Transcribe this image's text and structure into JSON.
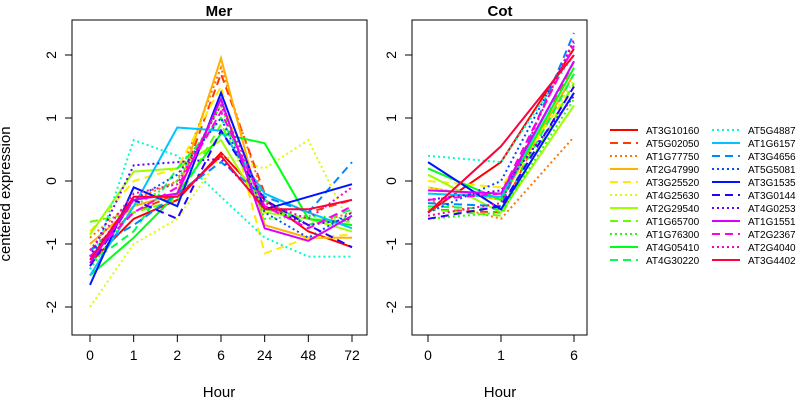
{
  "chart_data": [
    {
      "type": "line",
      "title": "Mer",
      "xlabel": "Hour",
      "ylabel": "centered expression",
      "categories": [
        "0",
        "1",
        "2",
        "6",
        "24",
        "48",
        "72"
      ],
      "ylim": [
        -2,
        2
      ],
      "yticks": [
        "-2",
        "-1",
        "0",
        "1",
        "2"
      ],
      "series": [
        {
          "name": "AT3G10160",
          "color": "#FF0000",
          "dash": "solid",
          "values": [
            -1.3,
            -0.6,
            -0.3,
            0.45,
            -0.3,
            -0.8,
            -1.05
          ]
        },
        {
          "name": "AT5G02050",
          "color": "#FF3B00",
          "dash": "dashed",
          "values": [
            -1.1,
            -0.5,
            -0.2,
            1.7,
            -0.2,
            -0.5,
            -0.3
          ]
        },
        {
          "name": "AT1G77750",
          "color": "#FF7600",
          "dash": "dotted",
          "values": [
            -0.9,
            -0.3,
            0.0,
            1.8,
            -0.3,
            -0.7,
            -0.5
          ]
        },
        {
          "name": "AT2G47990",
          "color": "#FFB100",
          "dash": "solid",
          "values": [
            -1.0,
            -0.4,
            -0.2,
            1.95,
            -0.7,
            -0.9,
            -0.9
          ]
        },
        {
          "name": "AT3G25520",
          "color": "#FFEB00",
          "dash": "dashed",
          "values": [
            -0.8,
            0.0,
            0.2,
            1.5,
            -1.15,
            -0.9,
            -0.85
          ]
        },
        {
          "name": "AT4G25630",
          "color": "#D8FF00",
          "dash": "dotted",
          "values": [
            -2.0,
            -1.0,
            -0.6,
            0.4,
            0.2,
            0.65,
            -0.75
          ]
        },
        {
          "name": "AT2G29540",
          "color": "#9DFF00",
          "dash": "solid",
          "values": [
            -0.85,
            0.15,
            0.2,
            0.65,
            -0.5,
            -0.6,
            -0.8
          ]
        },
        {
          "name": "AT1G65700",
          "color": "#62FF00",
          "dash": "dashed",
          "values": [
            -0.65,
            -0.5,
            -0.3,
            0.9,
            -0.45,
            -0.6,
            -0.65
          ]
        },
        {
          "name": "AT1G76300",
          "color": "#27FF00",
          "dash": "dotted",
          "values": [
            -1.4,
            -0.4,
            0.0,
            1.2,
            -0.6,
            -0.55,
            -0.6
          ]
        },
        {
          "name": "AT4G05410",
          "color": "#00FF14",
          "dash": "solid",
          "values": [
            -1.5,
            -0.9,
            -0.2,
            0.75,
            0.6,
            -0.6,
            -0.7
          ]
        },
        {
          "name": "AT4G30220",
          "color": "#00FF4F",
          "dash": "dashed",
          "values": [
            -1.3,
            -0.8,
            0.2,
            1.0,
            -0.3,
            -0.7,
            -0.45
          ]
        },
        {
          "name": "AT5G4887",
          "color": "#00FFC4",
          "dash": "dotted",
          "values": [
            -1.4,
            0.65,
            0.4,
            -0.25,
            -0.9,
            -1.2,
            -1.2
          ]
        },
        {
          "name": "AT1G6157",
          "color": "#00C4FF",
          "dash": "solid",
          "values": [
            -1.5,
            -0.4,
            0.85,
            0.8,
            -0.2,
            -0.5,
            -0.75
          ]
        },
        {
          "name": "AT3G4656",
          "color": "#0089FF",
          "dash": "dashed",
          "values": [
            -1.1,
            -0.7,
            -0.2,
            0.3,
            -0.25,
            -0.5,
            0.3
          ]
        },
        {
          "name": "AT5G5081",
          "color": "#004EFF",
          "dash": "dotted",
          "values": [
            -1.2,
            -0.3,
            0.1,
            1.0,
            -0.5,
            -0.9,
            -0.5
          ]
        },
        {
          "name": "AT3G1535",
          "color": "#0014FF",
          "dash": "solid",
          "values": [
            -1.65,
            -0.1,
            -0.4,
            1.4,
            -0.45,
            -0.25,
            -0.05
          ]
        },
        {
          "name": "AT3G0144",
          "color": "#2700FF",
          "dash": "dashed",
          "values": [
            -1.35,
            -0.3,
            -0.6,
            0.8,
            -0.3,
            -0.7,
            -1.05
          ]
        },
        {
          "name": "AT4G0253",
          "color": "#6200FF",
          "dash": "dotted",
          "values": [
            -1.2,
            0.25,
            0.3,
            0.35,
            -0.4,
            -0.7,
            -0.6
          ]
        },
        {
          "name": "AT1G1551",
          "color": "#D800FF",
          "dash": "solid",
          "values": [
            -1.3,
            -0.3,
            -0.2,
            1.3,
            -0.75,
            -0.95,
            -0.55
          ]
        },
        {
          "name": "AT2G2367",
          "color": "#FF00EB",
          "dash": "dashed",
          "values": [
            -1.2,
            -0.5,
            -0.1,
            1.1,
            -0.4,
            -0.75,
            -0.4
          ]
        },
        {
          "name": "AT2G4040",
          "color": "#FF00B1",
          "dash": "dotted",
          "values": [
            -1.1,
            -0.2,
            -0.05,
            1.2,
            -0.35,
            -0.6,
            -0.1
          ]
        },
        {
          "name": "AT3G4402",
          "color": "#FF003B",
          "dash": "solid",
          "values": [
            -1.25,
            -0.25,
            -0.25,
            0.4,
            -0.45,
            -0.45,
            -0.3
          ]
        }
      ]
    },
    {
      "type": "line",
      "title": "Cot",
      "xlabel": "Hour",
      "ylabel": "",
      "categories": [
        "0",
        "1",
        "6"
      ],
      "ylim": [
        -2,
        2
      ],
      "yticks": [
        "-2",
        "-1",
        "0",
        "1",
        "2"
      ],
      "series": [
        {
          "name": "AT3G10160",
          "color": "#FF0000",
          "dash": "solid",
          "values": [
            -0.5,
            0.3,
            2.1
          ]
        },
        {
          "name": "AT5G02050",
          "color": "#FF3B00",
          "dash": "dashed",
          "values": [
            -0.45,
            -0.5,
            1.9
          ]
        },
        {
          "name": "AT1G77750",
          "color": "#FF7600",
          "dash": "dotted",
          "values": [
            -0.3,
            -0.6,
            0.7
          ]
        },
        {
          "name": "AT2G47990",
          "color": "#FFB100",
          "dash": "solid",
          "values": [
            -0.1,
            -0.3,
            1.7
          ]
        },
        {
          "name": "AT3G25520",
          "color": "#FFEB00",
          "dash": "dashed",
          "values": [
            0.0,
            -0.1,
            1.5
          ]
        },
        {
          "name": "AT4G25630",
          "color": "#D8FF00",
          "dash": "dotted",
          "values": [
            -0.1,
            -0.3,
            1.6
          ]
        },
        {
          "name": "AT2G29540",
          "color": "#9DFF00",
          "dash": "solid",
          "values": [
            0.1,
            -0.5,
            1.2
          ]
        },
        {
          "name": "AT1G65700",
          "color": "#62FF00",
          "dash": "dashed",
          "values": [
            -0.45,
            -0.55,
            1.55
          ]
        },
        {
          "name": "AT1G76300",
          "color": "#27FF00",
          "dash": "dotted",
          "values": [
            -0.6,
            -0.5,
            1.3
          ]
        },
        {
          "name": "AT4G05410",
          "color": "#00FF14",
          "dash": "solid",
          "values": [
            0.2,
            -0.3,
            1.8
          ]
        },
        {
          "name": "AT4G30220",
          "color": "#00FF4F",
          "dash": "dashed",
          "values": [
            -0.4,
            -0.45,
            1.7
          ]
        },
        {
          "name": "AT5G4887",
          "color": "#00FFC4",
          "dash": "dotted",
          "values": [
            0.4,
            0.3,
            2.0
          ]
        },
        {
          "name": "AT1G6157",
          "color": "#00C4FF",
          "dash": "solid",
          "values": [
            -0.2,
            -0.25,
            1.9
          ]
        },
        {
          "name": "AT3G4656",
          "color": "#0089FF",
          "dash": "dashed",
          "values": [
            -0.35,
            -0.4,
            2.35
          ]
        },
        {
          "name": "AT5G5081",
          "color": "#004EFF",
          "dash": "dotted",
          "values": [
            -0.5,
            0.0,
            2.2
          ]
        },
        {
          "name": "AT3G1535",
          "color": "#0014FF",
          "dash": "solid",
          "values": [
            0.3,
            -0.45,
            1.4
          ]
        },
        {
          "name": "AT3G0144",
          "color": "#2700FF",
          "dash": "dashed",
          "values": [
            -0.6,
            -0.4,
            1.5
          ]
        },
        {
          "name": "AT4G0253",
          "color": "#6200FF",
          "dash": "dotted",
          "values": [
            -0.3,
            -0.15,
            1.35
          ]
        },
        {
          "name": "AT1G1551",
          "color": "#D800FF",
          "dash": "solid",
          "values": [
            -0.15,
            -0.2,
            1.9
          ]
        },
        {
          "name": "AT2G2367",
          "color": "#FF00EB",
          "dash": "dashed",
          "values": [
            -0.3,
            -0.2,
            2.15
          ]
        },
        {
          "name": "AT2G4040",
          "color": "#FF00B1",
          "dash": "dotted",
          "values": [
            -0.55,
            -0.35,
            2.25
          ]
        },
        {
          "name": "AT3G4402",
          "color": "#FF003B",
          "dash": "solid",
          "values": [
            -0.5,
            0.55,
            2.0
          ]
        }
      ]
    }
  ]
}
